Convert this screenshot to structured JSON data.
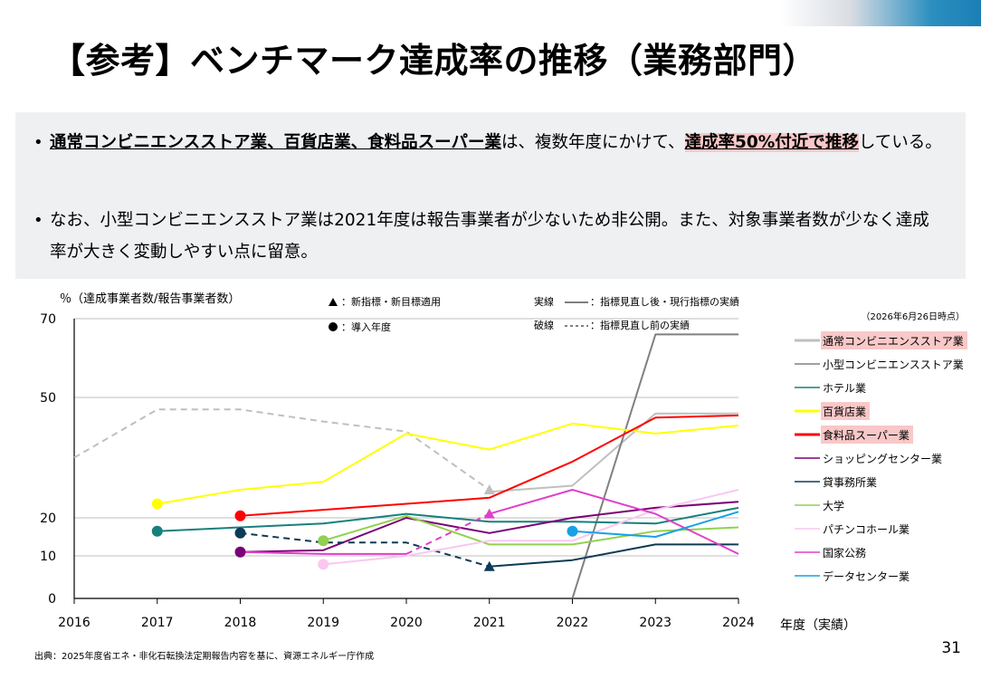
{
  "title": "【参考】ベンチマーク達成率の推移（業務部門）",
  "summary": {
    "bullet1": {
      "part1": "通常コンビニエンスストア業、百貨店業、食料品スーパー業",
      "part2": "は、複数年度にかけて、",
      "part3": "達成率50%付近で推移",
      "part4": "している。"
    },
    "bullet2": "なお、小型コンビニエンスストア業は2021年度は報告事業者が少ないため非公開。また、対象事業者数が少なく達成率が大きく変動しやすい点に留意。"
  },
  "note_date": "（2026年6月26日時点）",
  "source": "出典：2025年度省エネ・非化石転換法定期報告内容を基に、資源エネルギー庁作成",
  "page_number": "31",
  "chart_data": {
    "type": "line",
    "ylabel": "％（達成事業者数/報告事業者数）",
    "xlabel": "年度（実績）",
    "x": [
      2016,
      2017,
      2018,
      2019,
      2020,
      2021,
      2022,
      2023,
      2024
    ],
    "ylim": [
      0,
      70
    ],
    "yticks": [
      0,
      10,
      20,
      50,
      70
    ],
    "legend_position": "right",
    "annotations": {
      "triangle": "：新指標・新目標適用",
      "circle": "：導入年度",
      "solid_label": "実線",
      "solid": "：指標見直し後・現行指標の実績",
      "dashed_label": "破線",
      "dashed": "：指標見直し前の実績"
    },
    "series": [
      {
        "name": "通常コンビニエンスストア業",
        "color": "#bfbfbf",
        "highlight": true,
        "dashed": [
          [
            2016,
            35
          ],
          [
            2017,
            47
          ],
          [
            2018,
            47
          ],
          [
            2019,
            44
          ],
          [
            2020,
            41.5
          ],
          [
            2021,
            27
          ]
        ],
        "solid": [
          [
            2021,
            26.5
          ],
          [
            2022,
            28
          ],
          [
            2023,
            46
          ],
          [
            2024,
            46
          ]
        ],
        "triangle": [
          2021,
          27
        ]
      },
      {
        "name": "小型コンビニエンスストア業",
        "color": "#808080",
        "solid": [
          [
            2022,
            0
          ],
          [
            2023,
            66
          ],
          [
            2024,
            66
          ]
        ]
      },
      {
        "name": "ホテル業",
        "color": "#17807c",
        "solid": [
          [
            2017,
            16.5
          ],
          [
            2018,
            17.5
          ],
          [
            2019,
            18.5
          ],
          [
            2020,
            21
          ],
          [
            2021,
            19
          ],
          [
            2022,
            19
          ],
          [
            2023,
            18.5
          ],
          [
            2024,
            22.5
          ]
        ],
        "circle": [
          2017,
          16.5
        ]
      },
      {
        "name": "百貨店業",
        "color": "#ffff00",
        "highlight": true,
        "solid": [
          [
            2017,
            23.5
          ],
          [
            2018,
            27
          ],
          [
            2019,
            29
          ],
          [
            2020,
            41
          ],
          [
            2021,
            37
          ],
          [
            2022,
            43.5
          ],
          [
            2023,
            41
          ],
          [
            2024,
            43
          ]
        ],
        "circle": [
          2017,
          23.5
        ]
      },
      {
        "name": "食料品スーパー業",
        "color": "#ff0000",
        "highlight": true,
        "solid": [
          [
            2018,
            20.5
          ],
          [
            2019,
            22
          ],
          [
            2020,
            23.5
          ],
          [
            2021,
            25
          ],
          [
            2022,
            34
          ],
          [
            2023,
            45
          ],
          [
            2024,
            45.5
          ]
        ],
        "circle": [
          2018,
          20.5
        ]
      },
      {
        "name": "ショッピングセンター業",
        "color": "#7a0078",
        "solid": [
          [
            2018,
            11
          ],
          [
            2019,
            11.5
          ],
          [
            2020,
            20
          ],
          [
            2021,
            16
          ],
          [
            2022,
            20
          ],
          [
            2023,
            22.5
          ],
          [
            2024,
            24
          ]
        ],
        "circle": [
          2018,
          11
        ]
      },
      {
        "name": "貸事務所業",
        "color": "#0d3b56",
        "dashed": [
          [
            2018,
            16
          ],
          [
            2019,
            13.5
          ],
          [
            2020,
            13.5
          ],
          [
            2021,
            7.5
          ]
        ],
        "solid": [
          [
            2021,
            7.5
          ],
          [
            2022,
            9
          ],
          [
            2023,
            13
          ],
          [
            2024,
            13
          ]
        ],
        "circle": [
          2018,
          16
        ],
        "triangle": [
          2021,
          7.5
        ]
      },
      {
        "name": "大学",
        "color": "#92d050",
        "solid": [
          [
            2019,
            14
          ],
          [
            2020,
            20.5
          ],
          [
            2021,
            13
          ],
          [
            2022,
            13
          ],
          [
            2023,
            16.5
          ],
          [
            2024,
            17.5
          ]
        ],
        "circle": [
          2019,
          14
        ]
      },
      {
        "name": "パチンコホール業",
        "color": "#f9c8ef",
        "solid": [
          [
            2019,
            8
          ],
          [
            2020,
            10
          ],
          [
            2021,
            14
          ],
          [
            2022,
            14
          ],
          [
            2023,
            22
          ],
          [
            2024,
            27
          ]
        ],
        "circle": [
          2019,
          8
        ]
      },
      {
        "name": "国家公務",
        "color": "#e040c8",
        "solid": [
          [
            2018,
            11
          ],
          [
            2019,
            10.5
          ],
          [
            2020,
            10.5
          ]
        ],
        "dashed": [
          [
            2020,
            10.5
          ],
          [
            2021,
            21
          ]
        ],
        "solid2": [
          [
            2021,
            21
          ],
          [
            2022,
            27
          ],
          [
            2023,
            21
          ],
          [
            2024,
            10.5
          ]
        ],
        "triangle": [
          2021,
          21
        ]
      },
      {
        "name": "データセンター業",
        "color": "#17a1e6",
        "solid": [
          [
            2022,
            16.5
          ],
          [
            2023,
            15
          ],
          [
            2024,
            21.5
          ]
        ],
        "circle": [
          2022,
          16.5
        ]
      }
    ]
  }
}
